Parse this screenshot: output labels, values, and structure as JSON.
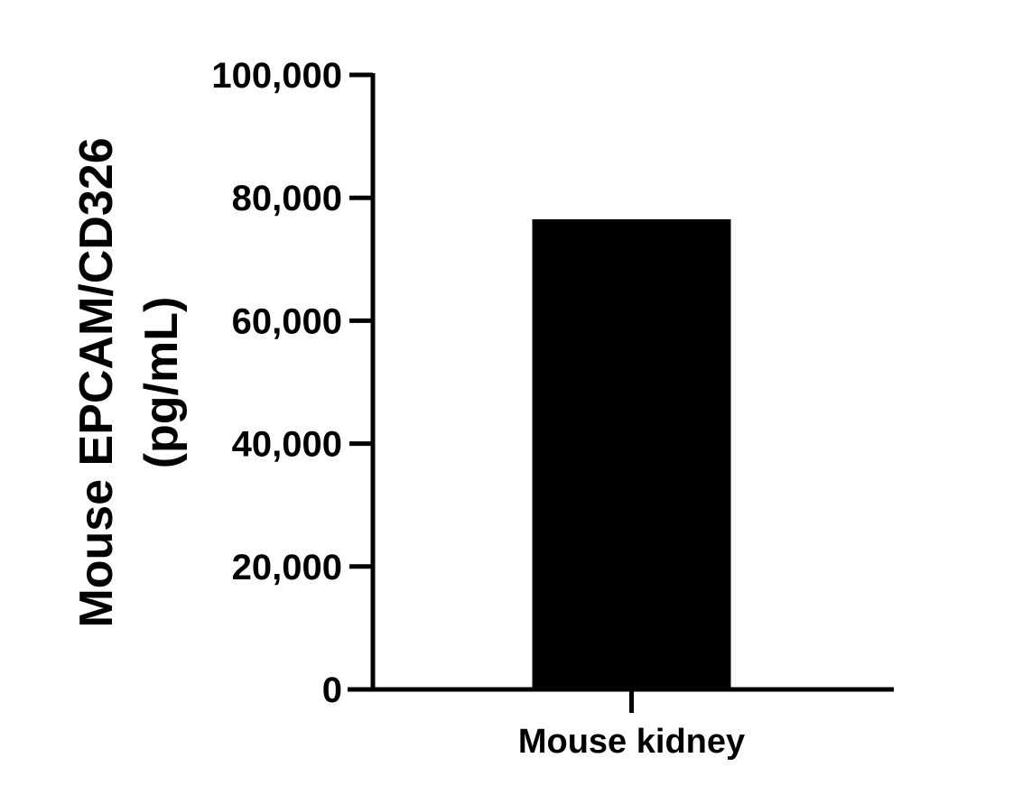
{
  "chart_data": {
    "type": "bar",
    "title": "",
    "ylabel_lines": [
      "Mouse EPCAM/CD326",
      "(pg/mL)"
    ],
    "xlabel": "",
    "ylim": [
      0,
      100000
    ],
    "yticks": [
      0,
      20000,
      40000,
      60000,
      80000,
      100000
    ],
    "ytick_labels": [
      "0",
      "20,000",
      "40,000",
      "60,000",
      "80,000",
      "100,000"
    ],
    "categories": [
      "Mouse kidney"
    ],
    "values": [
      76500
    ],
    "bar_color": "#000000",
    "grid": false,
    "legend": "none"
  }
}
